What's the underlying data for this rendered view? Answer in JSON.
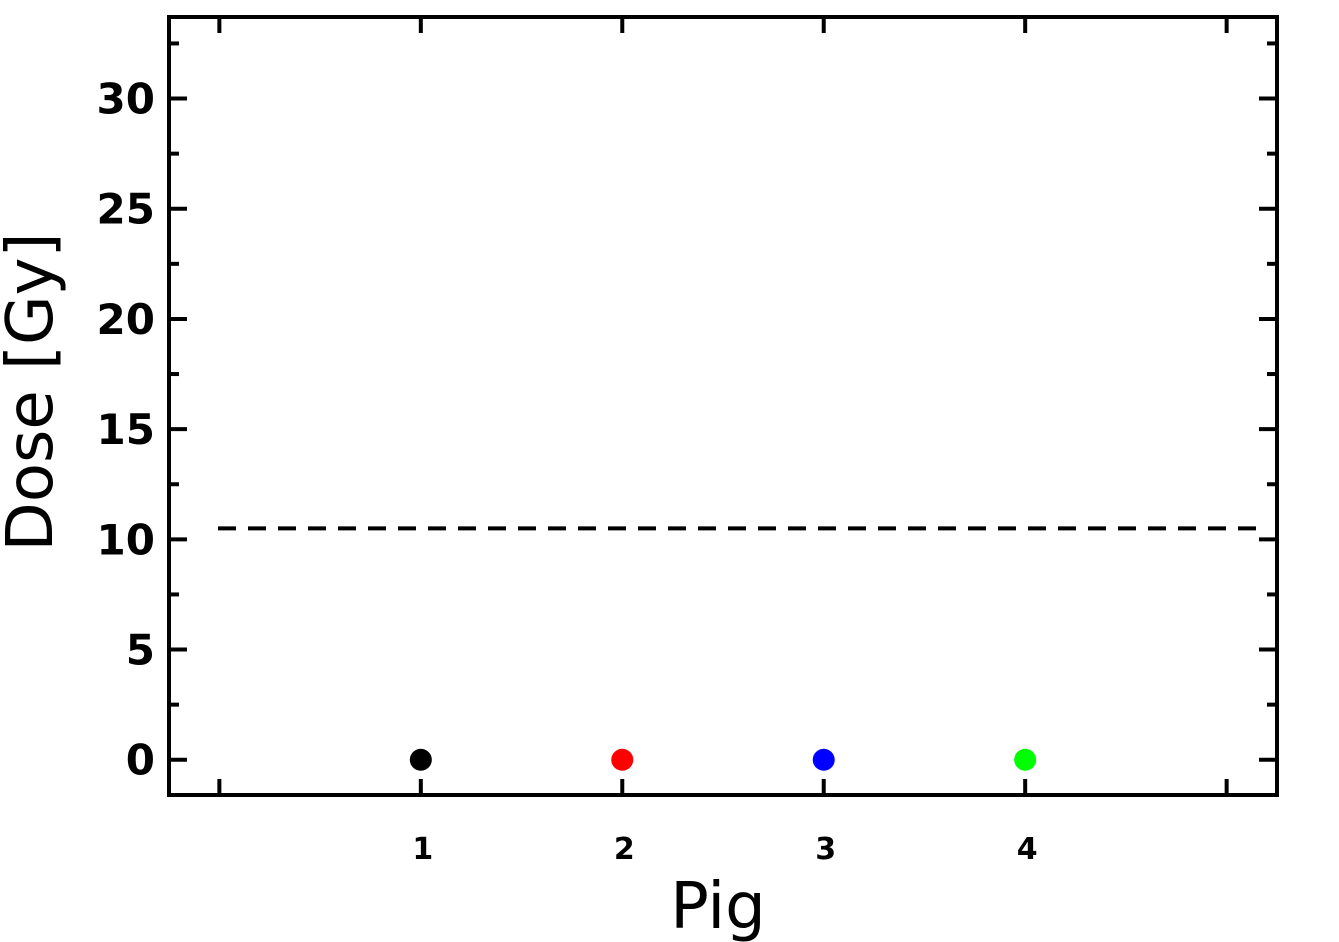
{
  "chart_data": {
    "type": "scatter",
    "title": "",
    "xlabel": "Pig",
    "ylabel": "Dose  [Gy]",
    "x_ticks": [
      1,
      2,
      3,
      4
    ],
    "x_minor_ticks": [
      0,
      1,
      2,
      3,
      4,
      5
    ],
    "xlim": [
      -0.25,
      5.25
    ],
    "y_ticks": [
      0,
      5,
      10,
      15,
      20,
      25,
      30
    ],
    "ylim": [
      -1.6,
      33.7
    ],
    "grid": false,
    "points": [
      {
        "x": 1,
        "y": 0,
        "color": "#000000"
      },
      {
        "x": 2,
        "y": 0,
        "color": "#ff0000"
      },
      {
        "x": 3,
        "y": 0,
        "color": "#0000ff"
      },
      {
        "x": 4,
        "y": 0,
        "color": "#00ff00"
      }
    ],
    "reference_line": {
      "y": 10.5,
      "style": "dashed",
      "color": "#000000"
    }
  }
}
